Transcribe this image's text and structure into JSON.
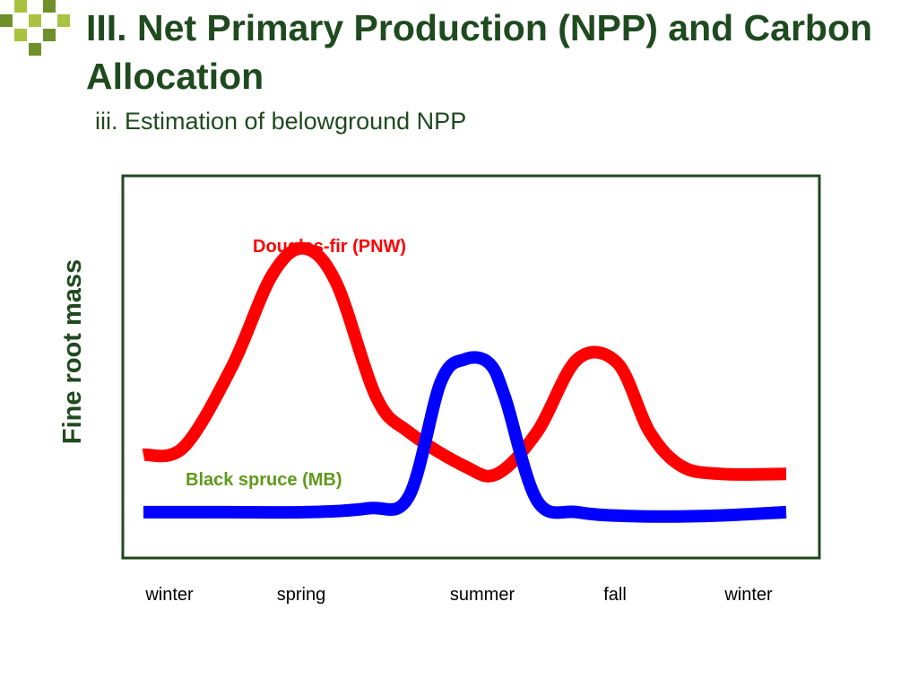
{
  "slide": {
    "title": "III. Net Primary Production (NPP) and Carbon Allocation",
    "subtitle": "iii. Estimation of belowground NPP"
  },
  "colors": {
    "title": "#1f4a1f",
    "frame": "#1f4a1f",
    "deco_light": "#a9c23f",
    "deco_dark": "#6f8f2a",
    "douglas_fir": "#ff0000",
    "black_spruce": "#0000ff",
    "black_spruce_label": "#5f9a1a"
  },
  "chart_data": {
    "type": "line",
    "title": "",
    "xlabel": "",
    "ylabel": "Fine root mass",
    "categories": [
      "winter",
      "spring",
      "summer",
      "fall",
      "winter"
    ],
    "xlim": [
      0,
      4
    ],
    "ylim": [
      0,
      1
    ],
    "grid": false,
    "legend": "inline labels",
    "series": [
      {
        "name": "Douglas-fir (PNW)",
        "color": "#ff0000",
        "x": [
          0,
          0.25,
          0.55,
          0.8,
          1.0,
          1.2,
          1.45,
          1.65,
          2.0,
          2.2,
          2.45,
          2.7,
          2.95,
          3.15,
          3.35,
          3.6,
          4.0
        ],
        "y": [
          0.27,
          0.29,
          0.5,
          0.74,
          0.81,
          0.72,
          0.42,
          0.33,
          0.24,
          0.22,
          0.33,
          0.52,
          0.51,
          0.33,
          0.24,
          0.22,
          0.22
        ]
      },
      {
        "name": "Black spruce (MB)",
        "color": "#0000ff",
        "x": [
          0,
          0.5,
          1.0,
          1.4,
          1.65,
          1.85,
          2.0,
          2.15,
          2.25,
          2.45,
          2.7,
          3.0,
          3.5,
          4.0
        ],
        "y": [
          0.12,
          0.12,
          0.12,
          0.13,
          0.16,
          0.46,
          0.52,
          0.51,
          0.42,
          0.15,
          0.12,
          0.11,
          0.11,
          0.12
        ]
      }
    ]
  }
}
